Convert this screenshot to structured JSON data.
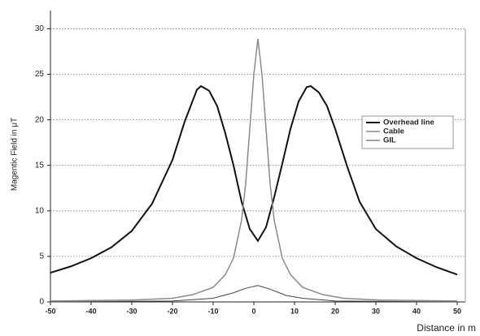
{
  "chart_data": {
    "type": "line",
    "x_label": "Distance in m",
    "y_label": "Magentic Field in μT",
    "xlim": [
      -50,
      52
    ],
    "ylim": [
      0,
      32
    ],
    "xticks": [
      -50,
      -40,
      -30,
      -20,
      -10,
      0,
      10,
      20,
      30,
      40,
      50
    ],
    "yticks": [
      0,
      5,
      10,
      15,
      20,
      25,
      30
    ],
    "grid": true,
    "legend": "right",
    "series": [
      {
        "name": "Overhead line",
        "color": "#111111",
        "width": 2,
        "x": [
          -50,
          -45,
          -40,
          -35,
          -30,
          -25,
          -20,
          -17,
          -14,
          -13,
          -11,
          -9,
          -7,
          -5,
          -3,
          -1,
          1,
          3,
          5,
          7,
          9,
          11,
          13,
          14,
          16,
          18,
          20,
          23,
          26,
          30,
          35,
          40,
          45,
          50
        ],
        "values": [
          3.2,
          3.9,
          4.8,
          6.0,
          7.8,
          10.8,
          15.6,
          19.8,
          23.3,
          23.7,
          23.2,
          21.5,
          18.5,
          15,
          11,
          8,
          6.7,
          8.2,
          11.5,
          15.2,
          19,
          22,
          23.6,
          23.7,
          23,
          21.5,
          19,
          14.8,
          11,
          8,
          6.1,
          4.8,
          3.8,
          3.0
        ]
      },
      {
        "name": "Cable",
        "color": "#8a8a8a",
        "width": 1.5,
        "x": [
          -50,
          -30,
          -20,
          -15,
          -10,
          -7,
          -5,
          -3,
          -2,
          -1,
          0,
          1,
          2,
          3,
          4,
          5,
          7,
          9,
          12,
          17,
          22,
          31,
          50
        ],
        "values": [
          0.1,
          0.2,
          0.4,
          0.8,
          1.6,
          3,
          4.8,
          9,
          13,
          19,
          25,
          28.9,
          25,
          19,
          13,
          9,
          4.8,
          3,
          1.6,
          0.8,
          0.4,
          0.2,
          0.1
        ]
      },
      {
        "name": "GIL",
        "color": "#444444",
        "width": 1,
        "x": [
          -50,
          -20,
          -10,
          -5,
          -2,
          1,
          4,
          8,
          12,
          20,
          50
        ],
        "values": [
          0,
          0.1,
          0.4,
          1,
          1.5,
          1.8,
          1.4,
          0.7,
          0.4,
          0.1,
          0
        ]
      }
    ]
  }
}
